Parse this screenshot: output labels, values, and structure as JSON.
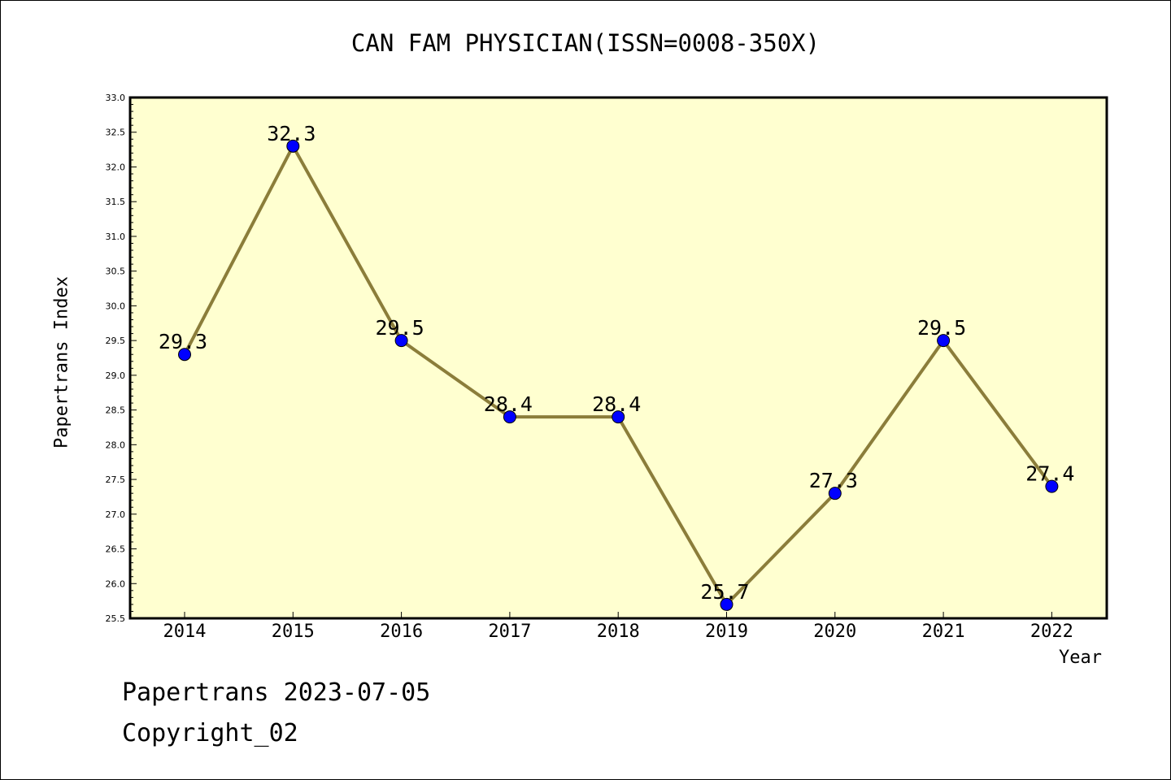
{
  "chart_data": {
    "type": "line",
    "title": "CAN FAM PHYSICIAN(ISSN=0008-350X)",
    "xlabel": "Year",
    "ylabel": "Papertrans Index",
    "categories": [
      "2014",
      "2015",
      "2016",
      "2017",
      "2018",
      "2019",
      "2020",
      "2021",
      "2022"
    ],
    "values": [
      29.3,
      32.3,
      29.5,
      28.4,
      28.4,
      25.7,
      27.3,
      29.5,
      27.4
    ],
    "data_labels": [
      "29.3",
      "32.3",
      "29.5",
      "28.4",
      "28.4",
      "25.7",
      "27.3",
      "29.5",
      "27.4"
    ],
    "ylim": [
      25.5,
      33.0
    ],
    "yticks": [
      "25.5",
      "26.0",
      "26.5",
      "27.0",
      "27.5",
      "28.0",
      "28.5",
      "29.0",
      "29.5",
      "30.0",
      "30.5",
      "31.0",
      "31.5",
      "32.0",
      "32.5",
      "33.0"
    ],
    "grid": false,
    "colors": {
      "plot_background": "#ffffd0",
      "line": "#8b7d3a",
      "marker": "#0000ff"
    }
  },
  "footer": {
    "line1": "Papertrans 2023-07-05",
    "line2": "Copyright_02"
  }
}
